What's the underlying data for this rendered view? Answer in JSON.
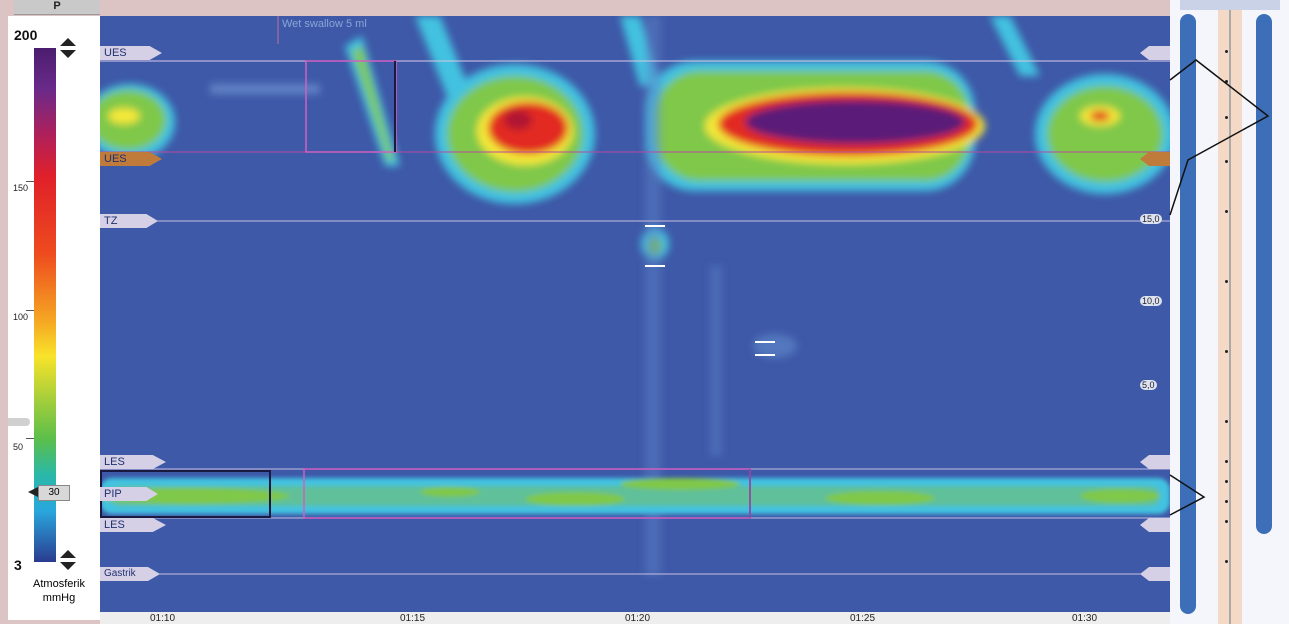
{
  "header": {
    "left_tab_label": "P"
  },
  "scale": {
    "max": "200",
    "min": "3",
    "ticks": [
      "150",
      "100",
      "50"
    ],
    "threshold": "30",
    "unit_line1": "Atmosferik",
    "unit_line2": "mmHg"
  },
  "annotation": {
    "event": "Wet swallow 5 ml"
  },
  "markers": {
    "ues_top": "UES",
    "ues_bottom": "UES",
    "tz": "TZ",
    "les_top": "LES",
    "pip": "PIP",
    "les_bottom": "LES",
    "gastrik": "Gastrik"
  },
  "depth_labels": [
    "15,0",
    "10,0",
    "5,0"
  ],
  "time_axis": [
    "01:10",
    "01:15",
    "01:20",
    "01:25",
    "01:30"
  ],
  "colors": {
    "background": "#3e59a8",
    "high": "#5a1a78",
    "red": "#e22b24",
    "yellow": "#f4e838",
    "green": "#7fc84a",
    "cyan": "#43c2e0",
    "selection": "#d060c0"
  }
}
